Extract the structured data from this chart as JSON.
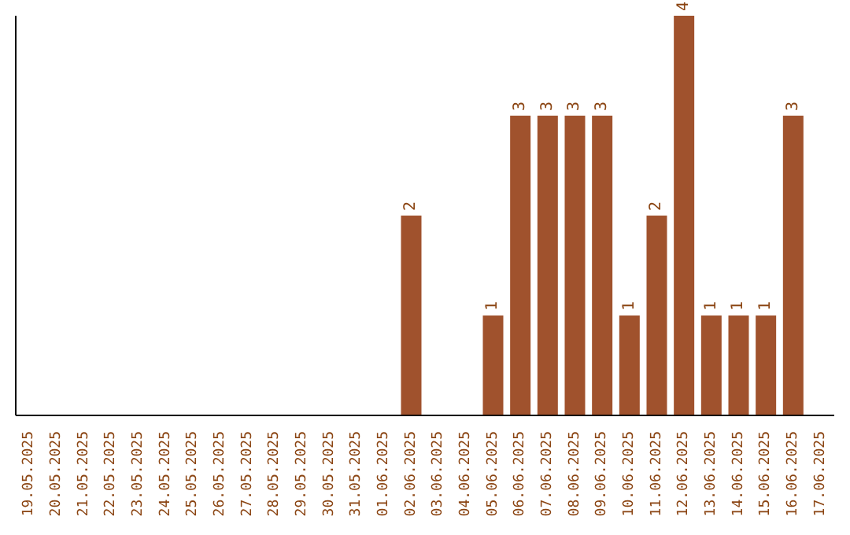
{
  "chart_data": {
    "type": "bar",
    "categories": [
      "19.05.2025",
      "20.05.2025",
      "21.05.2025",
      "22.05.2025",
      "23.05.2025",
      "24.05.2025",
      "25.05.2025",
      "26.05.2025",
      "27.05.2025",
      "28.05.2025",
      "29.05.2025",
      "30.05.2025",
      "31.05.2025",
      "01.06.2025",
      "02.06.2025",
      "03.06.2025",
      "04.06.2025",
      "05.06.2025",
      "06.06.2025",
      "07.06.2025",
      "08.06.2025",
      "09.06.2025",
      "10.06.2025",
      "11.06.2025",
      "12.06.2025",
      "13.06.2025",
      "14.06.2025",
      "15.06.2025",
      "16.06.2025",
      "17.06.2025"
    ],
    "values": [
      null,
      null,
      null,
      null,
      null,
      null,
      null,
      null,
      null,
      null,
      null,
      null,
      null,
      null,
      2,
      null,
      null,
      1,
      3,
      3,
      3,
      3,
      1,
      2,
      4,
      1,
      1,
      1,
      3,
      null
    ],
    "color": "#a0522d",
    "data_labels": true,
    "tick_labels": "x",
    "grid": false
  }
}
